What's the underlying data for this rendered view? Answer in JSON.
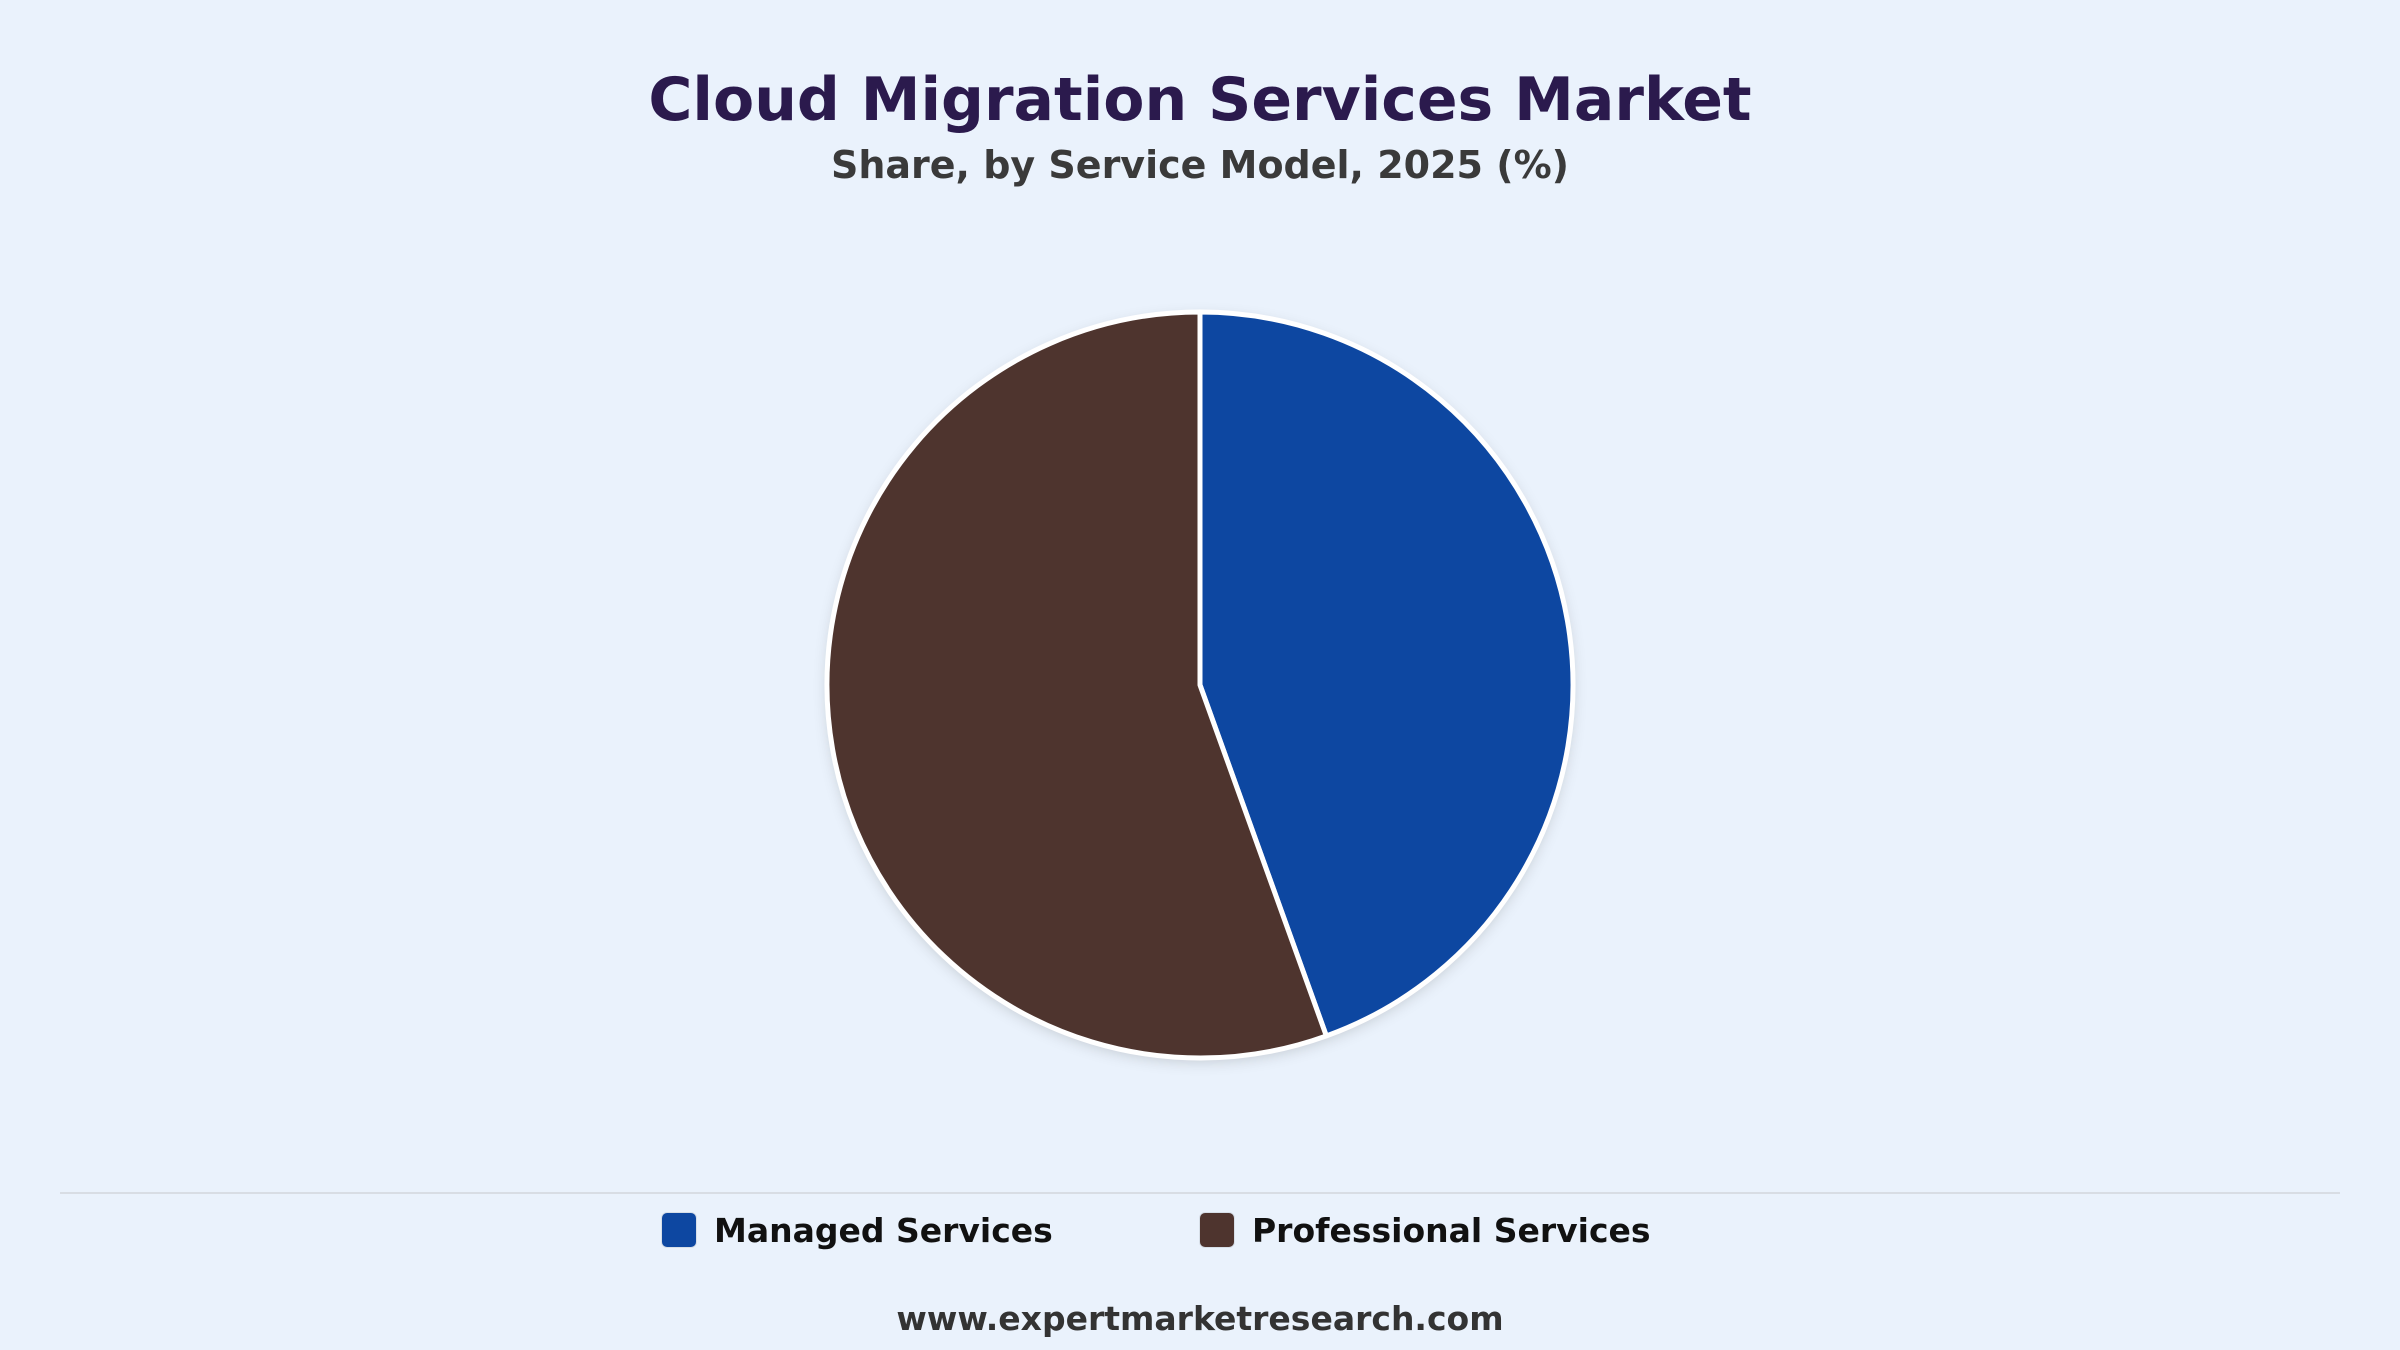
{
  "chart_data": {
    "type": "pie",
    "title": "Cloud Migration Services Market",
    "subtitle": "Share, by Service Model, 2025 (%)",
    "series": [
      {
        "name": "Managed Services",
        "value": 44.5,
        "color": "#0d47a1"
      },
      {
        "name": "Professional Services",
        "value": 55.5,
        "color": "#4e342e"
      }
    ],
    "legend_position": "bottom"
  },
  "legend": [
    {
      "label": "Managed Services",
      "color": "#0d47a1"
    },
    {
      "label": "Professional Services",
      "color": "#4e342e"
    }
  ],
  "footer": {
    "source": "www.expertmarketresearch.com"
  }
}
